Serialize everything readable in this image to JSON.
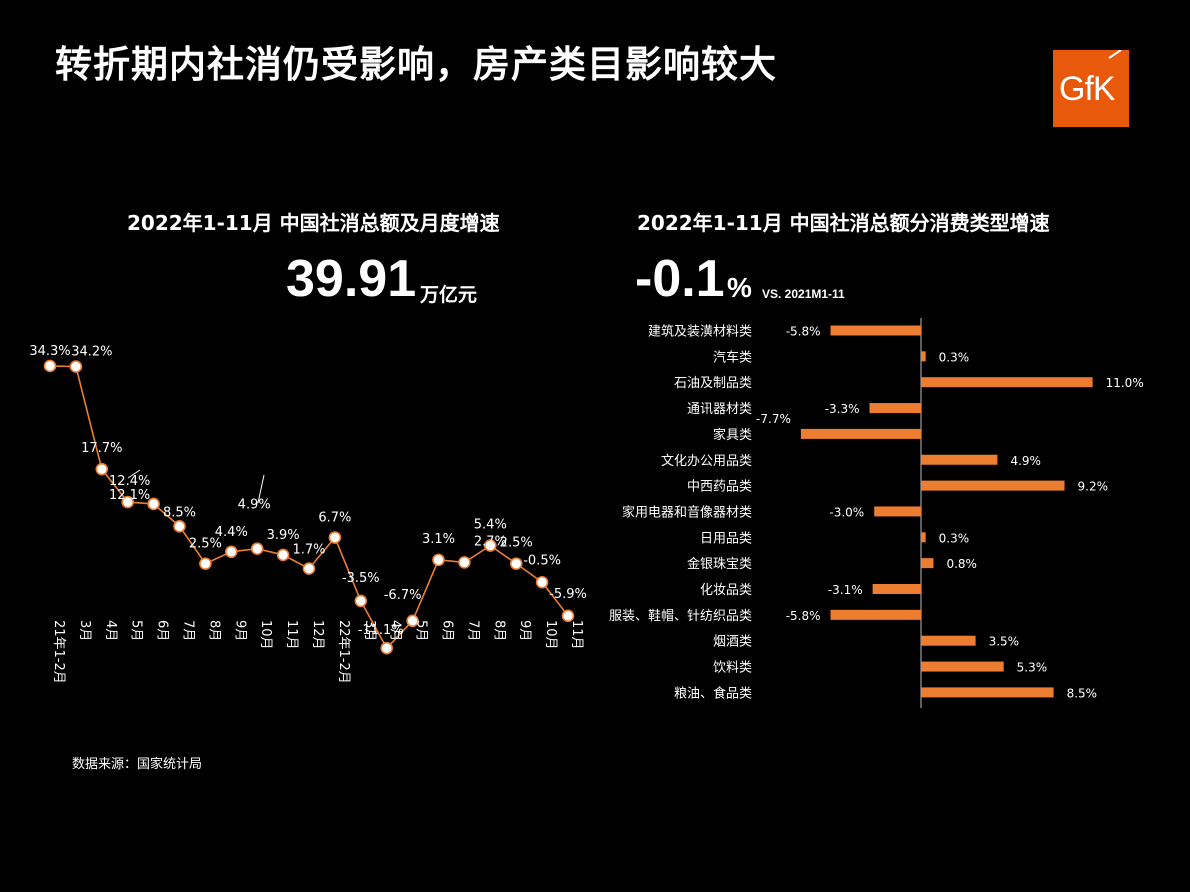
{
  "page": {
    "title": "转折期内社消仍受影响，房产类目影响较大",
    "logo_text": "GfK",
    "source": "数据来源：国家统计局",
    "accent_color": "#ed7d31",
    "logo_color": "#e8590c"
  },
  "left_panel": {
    "subtitle": "2022年1-11月  中国社消总额及月度增速",
    "big_value": "39.91",
    "unit": "万亿元"
  },
  "right_panel": {
    "subtitle": "2022年1-11月  中国社消总额分消费类型增速",
    "big_value": "-0.1",
    "big_value_suffix": "%",
    "vs_label": "VS. 2021M1-11"
  },
  "chart_data": [
    {
      "type": "line",
      "categories": [
        "21年1-2月",
        "3月",
        "4月",
        "5月",
        "6月",
        "7月",
        "8月",
        "9月",
        "10月",
        "11月",
        "12月",
        "22年1-2月",
        "3月",
        "4月",
        "5月",
        "6月",
        "7月",
        "8月",
        "9月",
        "10月",
        "11月"
      ],
      "values": [
        34.3,
        34.2,
        17.7,
        12.4,
        12.1,
        8.5,
        2.5,
        4.4,
        4.9,
        3.9,
        1.7,
        6.7,
        -3.5,
        -11.1,
        -6.7,
        3.1,
        2.7,
        5.4,
        2.5,
        -0.5,
        -5.9
      ],
      "data_labels": [
        "34.3%",
        "34.2%",
        "17.7%",
        "12.4%",
        "12.1%",
        "8.5%",
        "2.5%",
        "4.4%",
        "4.9%",
        "3.9%",
        "1.7%",
        "6.7%",
        "-3.5%",
        "-11.1%",
        "-6.7%",
        "3.1%",
        "2.7%",
        "5.4%",
        "2.5%",
        "-0.5%",
        "-5.9%"
      ],
      "color": "#ed7d31",
      "grid": false
    },
    {
      "type": "bar",
      "orientation": "horizontal",
      "categories": [
        "建筑及装潢材料类",
        "汽车类",
        "石油及制品类",
        "通讯器材类",
        "家具类",
        "文化办公用品类",
        "中西药品类",
        "家用电器和音像器材类",
        "日用品类",
        "金银珠宝类",
        "化妆品类",
        "服装、鞋帽、针纺织品类",
        "烟酒类",
        "饮料类",
        "粮油、食品类"
      ],
      "values": [
        -5.8,
        0.3,
        11.0,
        -3.3,
        -7.7,
        4.9,
        9.2,
        -3.0,
        0.3,
        0.8,
        -3.1,
        -5.8,
        3.5,
        5.3,
        8.5
      ],
      "data_labels": [
        "-5.8%",
        "0.3%",
        "11.0%",
        "-3.3%",
        "-7.7%",
        "4.9%",
        "9.2%",
        "-3.0%",
        "0.3%",
        "0.8%",
        "-3.1%",
        "-5.8%",
        "3.5%",
        "5.3%",
        "8.5%"
      ],
      "color": "#ed7d31",
      "grid": false
    }
  ]
}
